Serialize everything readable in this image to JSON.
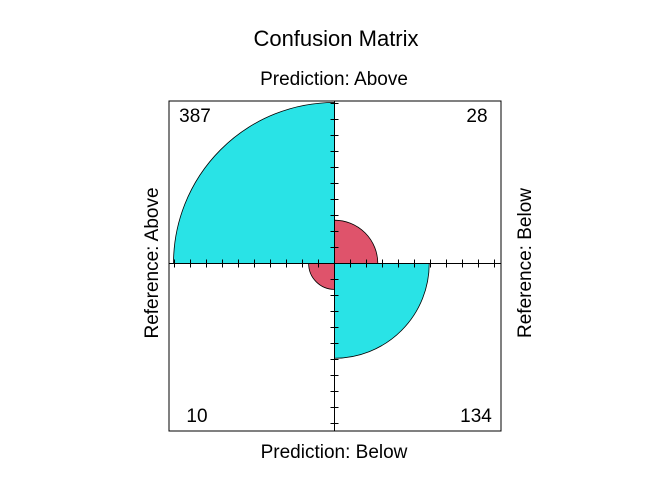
{
  "chart_data": {
    "type": "fourfold",
    "title": "Confusion Matrix",
    "top_label": "Prediction: Above",
    "bottom_label": "Prediction: Below",
    "left_label": "Reference: Above",
    "right_label": "Reference: Below",
    "cells": [
      {
        "quadrant": "top-left",
        "prediction": "Above",
        "reference": "Above",
        "count": 387,
        "count_label": "387",
        "color": "#29e3e6"
      },
      {
        "quadrant": "top-right",
        "prediction": "Above",
        "reference": "Below",
        "count": 28,
        "count_label": "28",
        "color": "#df536b"
      },
      {
        "quadrant": "bottom-left",
        "prediction": "Below",
        "reference": "Above",
        "count": 10,
        "count_label": "10",
        "color": "#df536b"
      },
      {
        "quadrant": "bottom-right",
        "prediction": "Below",
        "reference": "Below",
        "count": 134,
        "count_label": "134",
        "color": "#29e3e6"
      }
    ],
    "grid": false
  }
}
